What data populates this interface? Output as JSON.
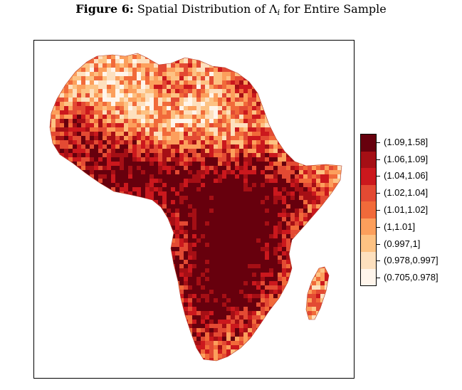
{
  "figure": {
    "label": "Figure 6:",
    "title_text": "Spatial Distribution of",
    "symbol": "Λ",
    "subscript": "i",
    "title_suffix": "for Entire Sample"
  },
  "legend": {
    "items": [
      {
        "label": "(1.09,1.58]",
        "color": "#67000d"
      },
      {
        "label": "(1.06,1.09]",
        "color": "#a50f15"
      },
      {
        "label": "(1.04,1.06]",
        "color": "#cb181d"
      },
      {
        "label": "(1.02,1.04]",
        "color": "#e34a33"
      },
      {
        "label": "(1.01,1.02]",
        "color": "#f16a3a"
      },
      {
        "label": "(1,1.01]",
        "color": "#fc9f5c"
      },
      {
        "label": "(0.997,1]",
        "color": "#fdc283"
      },
      {
        "label": "(0.978,0.997]",
        "color": "#fde0be"
      },
      {
        "label": "(0.705,0.978]",
        "color": "#fff5eb"
      }
    ]
  },
  "map": {
    "region": "Africa",
    "colors": [
      "#fff5eb",
      "#fde0be",
      "#fdc283",
      "#fc9f5c",
      "#f16a3a",
      "#e34a33",
      "#cb181d",
      "#a50f15",
      "#67000d"
    ]
  }
}
